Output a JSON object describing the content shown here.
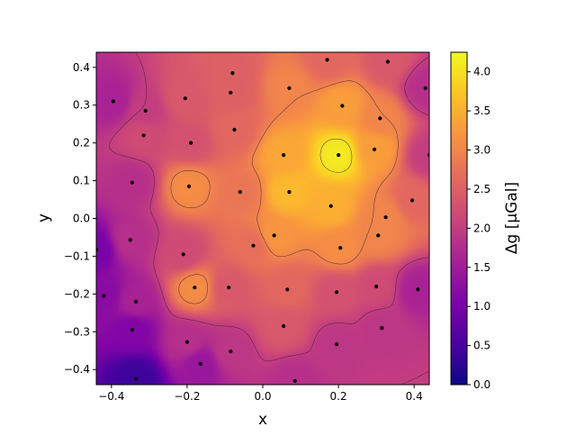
{
  "chart_data": {
    "type": "heatmap",
    "title": "",
    "xlabel": "x",
    "ylabel": "y",
    "xlim": [
      -0.44,
      0.44
    ],
    "ylim": [
      -0.44,
      0.44
    ],
    "xticks": [
      -0.4,
      -0.2,
      0.0,
      0.2,
      0.4
    ],
    "xtick_labels": [
      "−0.4",
      "−0.2",
      "0.0",
      "0.2",
      "0.4"
    ],
    "yticks": [
      -0.4,
      -0.3,
      -0.2,
      -0.1,
      0.0,
      0.1,
      0.2,
      0.3,
      0.4
    ],
    "ytick_labels": [
      "−0.4",
      "−0.3",
      "−0.2",
      "−0.1",
      "0.0",
      "0.1",
      "0.2",
      "0.3",
      "0.4"
    ],
    "colorbar": {
      "label": "Δg [μGal]",
      "range": [
        0.0,
        4.25
      ],
      "ticks": [
        0.0,
        0.5,
        1.0,
        1.5,
        2.0,
        2.5,
        3.0,
        3.5,
        4.0
      ],
      "tick_labels": [
        "0.0",
        "0.5",
        "1.0",
        "1.5",
        "2.0",
        "2.5",
        "3.0",
        "3.5",
        "4.0"
      ],
      "colormap": "plasma"
    },
    "contour_levels": [
      2.0,
      3.0,
      4.0
    ],
    "stations": [
      {
        "x": 0.17,
        "y": 0.42,
        "dg": 2.6
      },
      {
        "x": 0.33,
        "y": 0.415,
        "dg": 2.4
      },
      {
        "x": 0.43,
        "y": 0.345,
        "dg": 1.8
      },
      {
        "x": -0.08,
        "y": 0.385,
        "dg": 2.5
      },
      {
        "x": 0.07,
        "y": 0.345,
        "dg": 3.0
      },
      {
        "x": -0.395,
        "y": 0.31,
        "dg": 1.6
      },
      {
        "x": -0.205,
        "y": 0.318,
        "dg": 2.4
      },
      {
        "x": -0.085,
        "y": 0.333,
        "dg": 2.5
      },
      {
        "x": -0.31,
        "y": 0.285,
        "dg": 2.0
      },
      {
        "x": 0.21,
        "y": 0.298,
        "dg": 3.3
      },
      {
        "x": 0.31,
        "y": 0.265,
        "dg": 3.0
      },
      {
        "x": -0.075,
        "y": 0.235,
        "dg": 2.6
      },
      {
        "x": -0.315,
        "y": 0.22,
        "dg": 2.2
      },
      {
        "x": -0.19,
        "y": 0.2,
        "dg": 2.3
      },
      {
        "x": 0.055,
        "y": 0.168,
        "dg": 3.4
      },
      {
        "x": 0.2,
        "y": 0.168,
        "dg": 4.1
      },
      {
        "x": 0.295,
        "y": 0.183,
        "dg": 3.3
      },
      {
        "x": 0.44,
        "y": 0.168,
        "dg": 2.0
      },
      {
        "x": -0.345,
        "y": 0.095,
        "dg": 1.8
      },
      {
        "x": -0.195,
        "y": 0.085,
        "dg": 3.1
      },
      {
        "x": -0.06,
        "y": 0.07,
        "dg": 2.8
      },
      {
        "x": 0.07,
        "y": 0.07,
        "dg": 3.6
      },
      {
        "x": 0.395,
        "y": 0.048,
        "dg": 2.6
      },
      {
        "x": 0.18,
        "y": 0.033,
        "dg": 3.5
      },
      {
        "x": 0.325,
        "y": 0.003,
        "dg": 3.0
      },
      {
        "x": -0.44,
        "y": -0.082,
        "dg": 1.0
      },
      {
        "x": -0.35,
        "y": -0.057,
        "dg": 1.8
      },
      {
        "x": -0.21,
        "y": -0.095,
        "dg": 2.2
      },
      {
        "x": -0.025,
        "y": -0.072,
        "dg": 2.7
      },
      {
        "x": 0.03,
        "y": -0.045,
        "dg": 3.2
      },
      {
        "x": 0.205,
        "y": -0.078,
        "dg": 3.1
      },
      {
        "x": 0.305,
        "y": -0.045,
        "dg": 3.0
      },
      {
        "x": -0.42,
        "y": -0.205,
        "dg": 1.2
      },
      {
        "x": -0.335,
        "y": -0.22,
        "dg": 1.6
      },
      {
        "x": -0.18,
        "y": -0.183,
        "dg": 3.1
      },
      {
        "x": -0.09,
        "y": -0.183,
        "dg": 2.4
      },
      {
        "x": 0.065,
        "y": -0.188,
        "dg": 2.6
      },
      {
        "x": 0.195,
        "y": -0.195,
        "dg": 2.3
      },
      {
        "x": 0.3,
        "y": -0.18,
        "dg": 2.2
      },
      {
        "x": 0.41,
        "y": -0.188,
        "dg": 1.6
      },
      {
        "x": -0.345,
        "y": -0.295,
        "dg": 1.1
      },
      {
        "x": -0.2,
        "y": -0.327,
        "dg": 1.8
      },
      {
        "x": 0.055,
        "y": -0.285,
        "dg": 2.4
      },
      {
        "x": 0.195,
        "y": -0.333,
        "dg": 1.9
      },
      {
        "x": 0.315,
        "y": -0.29,
        "dg": 1.9
      },
      {
        "x": -0.165,
        "y": -0.385,
        "dg": 1.4
      },
      {
        "x": -0.085,
        "y": -0.352,
        "dg": 1.9
      },
      {
        "x": -0.335,
        "y": -0.425,
        "dg": 0.4
      },
      {
        "x": 0.085,
        "y": -0.43,
        "dg": 1.8
      }
    ]
  }
}
